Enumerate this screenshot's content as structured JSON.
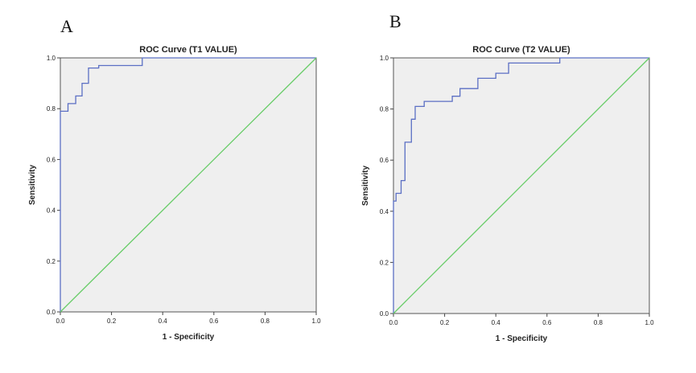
{
  "panels": [
    {
      "letter": "A"
    },
    {
      "letter": "B"
    }
  ],
  "chart_data": [
    {
      "type": "line",
      "title": "ROC Curve (T1 VALUE)",
      "xlabel": "1 - Specificity",
      "ylabel": "Sensitivity",
      "xlim": [
        0,
        1
      ],
      "ylim": [
        0,
        1
      ],
      "xticks": [
        "0.0",
        "0.2",
        "0.4",
        "0.6",
        "0.8",
        "1.0"
      ],
      "yticks": [
        "0.0",
        "0.2",
        "0.4",
        "0.6",
        "0.8",
        "1.0"
      ],
      "colors": {
        "roc": "#5b6fc4",
        "reference": "#66cc66",
        "plot_bg": "#efefef"
      },
      "series": [
        {
          "name": "roc",
          "x": [
            0.0,
            0.0,
            0.03,
            0.03,
            0.06,
            0.06,
            0.085,
            0.085,
            0.11,
            0.11,
            0.15,
            0.15,
            0.32,
            0.32,
            1.0
          ],
          "y": [
            0.0,
            0.79,
            0.79,
            0.82,
            0.82,
            0.85,
            0.85,
            0.9,
            0.9,
            0.96,
            0.96,
            0.97,
            0.97,
            1.0,
            1.0
          ]
        },
        {
          "name": "reference",
          "x": [
            0,
            1
          ],
          "y": [
            0,
            1
          ]
        }
      ]
    },
    {
      "type": "line",
      "title": "ROC Curve (T2 VALUE)",
      "xlabel": "1 - Specificity",
      "ylabel": "Sensitivity",
      "xlim": [
        0,
        1
      ],
      "ylim": [
        0,
        1
      ],
      "xticks": [
        "0.0",
        "0.2",
        "0.4",
        "0.6",
        "0.8",
        "1.0"
      ],
      "yticks": [
        "0.0",
        "0.2",
        "0.4",
        "0.6",
        "0.8",
        "1.0"
      ],
      "colors": {
        "roc": "#5b6fc4",
        "reference": "#66cc66",
        "plot_bg": "#efefef"
      },
      "series": [
        {
          "name": "roc",
          "x": [
            0.0,
            0.0,
            0.01,
            0.01,
            0.03,
            0.03,
            0.045,
            0.045,
            0.07,
            0.07,
            0.085,
            0.085,
            0.12,
            0.12,
            0.23,
            0.23,
            0.26,
            0.26,
            0.33,
            0.33,
            0.4,
            0.4,
            0.45,
            0.45,
            0.65,
            0.65,
            1.0
          ],
          "y": [
            0.0,
            0.44,
            0.44,
            0.47,
            0.47,
            0.52,
            0.52,
            0.67,
            0.67,
            0.76,
            0.76,
            0.81,
            0.81,
            0.83,
            0.83,
            0.85,
            0.85,
            0.88,
            0.88,
            0.92,
            0.92,
            0.94,
            0.94,
            0.98,
            0.98,
            1.0,
            1.0
          ]
        },
        {
          "name": "reference",
          "x": [
            0,
            1
          ],
          "y": [
            0,
            1
          ]
        }
      ]
    }
  ]
}
